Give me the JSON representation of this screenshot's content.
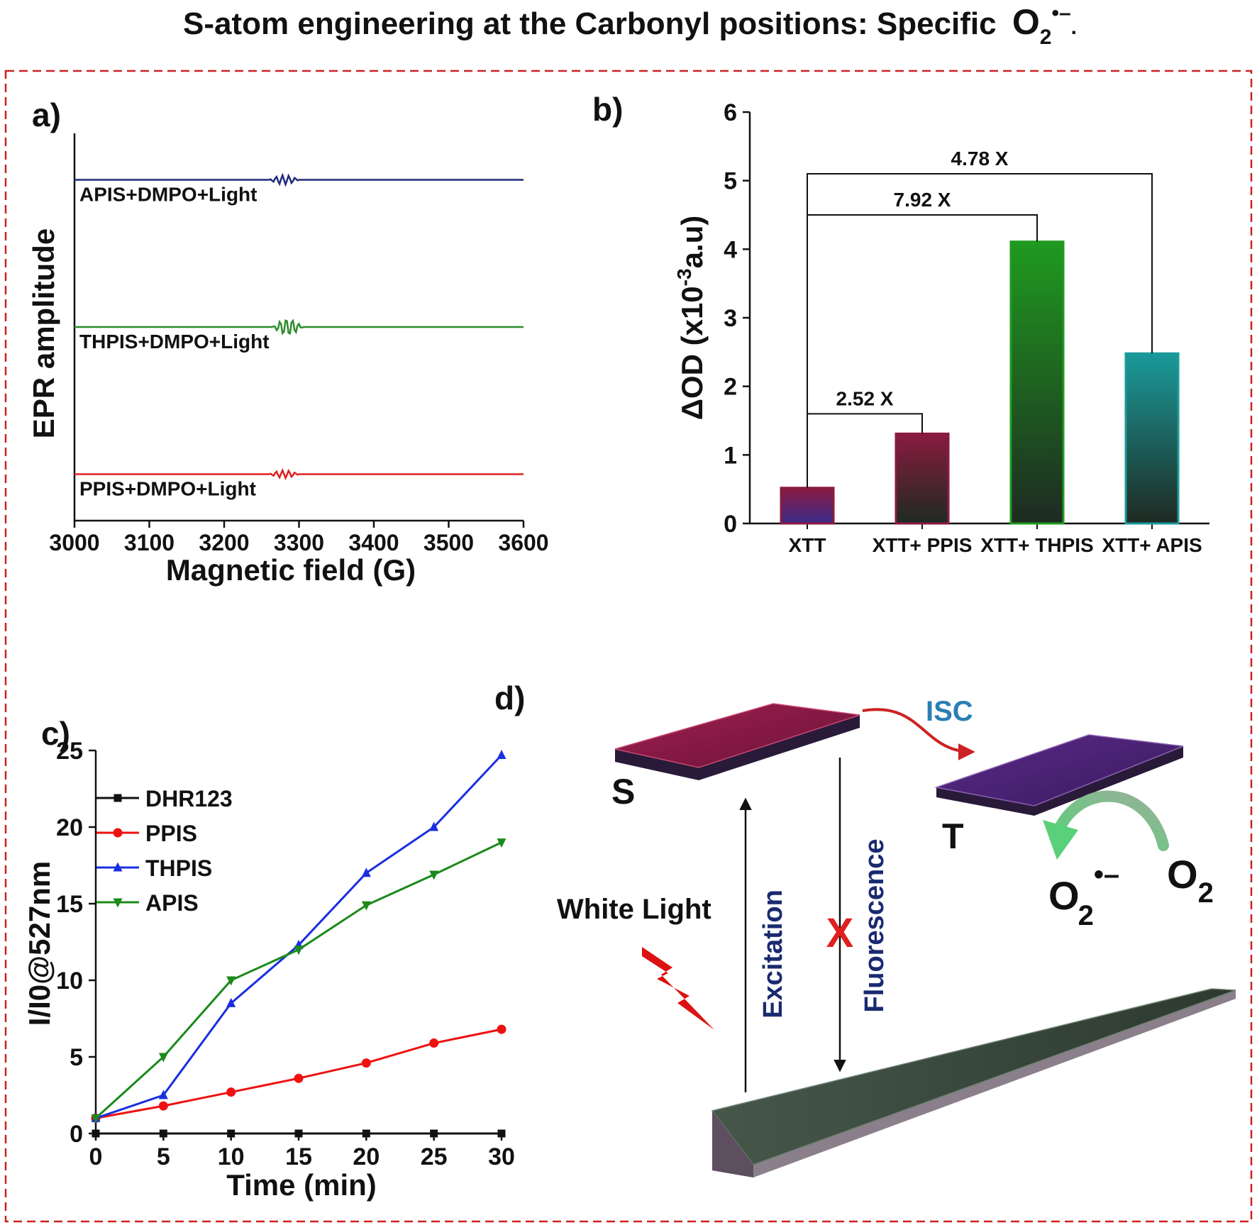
{
  "header": {
    "title": "S-atom engineering at the Carbonyl  positions: Specific",
    "species": "O",
    "species_sub": "2",
    "species_sup": "•–",
    "species_end": "."
  },
  "panels": {
    "a": {
      "label": "a)"
    },
    "b": {
      "label": "b)"
    },
    "c": {
      "label": "c)"
    },
    "d": {
      "label": "d)"
    }
  },
  "scheme": {
    "singlet": "S",
    "triplet": "T",
    "isc": "ISC",
    "light": "White Light",
    "excitation": "Excitation",
    "fluorescence": "Fluorescence",
    "blocked_mark": "X",
    "o2": "O",
    "o2_sub": "2",
    "o2rad": "O",
    "o2rad_sub": "2",
    "o2rad_sup": "•–",
    "colors": {
      "singlet": "#8a1b40",
      "triplet": "#4a2470",
      "plate": "#3b4a3b",
      "isc_arrow": "#cc2222",
      "isc_text": "#2a7fb5",
      "label_text": "#1a2a70",
      "cross": "#e02020",
      "bolt": "#dd1111"
    }
  },
  "chart_data": [
    {
      "type": "line",
      "panel": "a",
      "title": "",
      "xlabel": "Magnetic field (G)",
      "ylabel": "EPR amplitude",
      "xlim": [
        3000,
        3600
      ],
      "xticks": [
        3000,
        3100,
        3200,
        3300,
        3400,
        3500,
        3600
      ],
      "yticks_shown": false,
      "series": [
        {
          "name": "APIS+DMPO+Light",
          "color": "#1f2a7a",
          "baseline": 0.88,
          "signal_center": 3280,
          "signal_amp": 0.012
        },
        {
          "name": "THPIS+DMPO+Light",
          "color": "#2e8b2e",
          "baseline": 0.5,
          "signal_center": 3285,
          "signal_amp": 0.022
        },
        {
          "name": "PPIS+DMPO+Light",
          "color": "#e02020",
          "baseline": 0.12,
          "signal_center": 3280,
          "signal_amp": 0.01
        }
      ]
    },
    {
      "type": "bar",
      "panel": "b",
      "title": "",
      "xlabel": "",
      "ylabel": "ΔOD (x10⁻³a.u)",
      "ylabel_main": "ΔOD (x10",
      "ylabel_sup": "-3",
      "ylabel_end": "a.u)",
      "ylim": [
        0,
        6
      ],
      "yticks": [
        0,
        1,
        2,
        3,
        4,
        5,
        6
      ],
      "categories": [
        "XTT",
        "XTT+ PPIS",
        "XTT+ THPIS",
        "XTT+ APIS"
      ],
      "values": [
        0.52,
        1.31,
        4.11,
        2.48
      ],
      "bar_colors": [
        "#8a1b40",
        "#8a1b40",
        "#1f9a1f",
        "#1a9a9a"
      ],
      "annotations": [
        {
          "text": "2.52 X",
          "from": 0,
          "to": 1,
          "level": 1.6
        },
        {
          "text": "7.92 X",
          "from": 0,
          "to": 2,
          "level": 4.5
        },
        {
          "text": "4.78 X",
          "from": 0,
          "to": 3,
          "level": 5.1
        }
      ]
    },
    {
      "type": "line",
      "panel": "c",
      "title": "",
      "xlabel": "Time (min)",
      "ylabel": "I/I0@527nm",
      "xlim": [
        0,
        30
      ],
      "ylim": [
        0,
        25
      ],
      "xticks": [
        0,
        5,
        10,
        15,
        20,
        25,
        30
      ],
      "yticks": [
        0,
        5,
        10,
        15,
        20,
        25
      ],
      "legend_position": "top-left",
      "x": [
        0,
        5,
        10,
        15,
        20,
        25,
        30
      ],
      "series": [
        {
          "name": "DHR123",
          "color": "#111111",
          "marker": "square",
          "values": [
            0,
            0,
            0,
            0,
            0,
            0,
            0
          ]
        },
        {
          "name": "PPIS",
          "color": "#ee1111",
          "marker": "circle",
          "values": [
            1.0,
            1.8,
            2.7,
            3.6,
            4.6,
            5.9,
            6.8
          ]
        },
        {
          "name": "THPIS",
          "color": "#1a2ee0",
          "marker": "triangle-up",
          "values": [
            1.0,
            2.5,
            8.5,
            12.3,
            17.0,
            20.0,
            24.7
          ]
        },
        {
          "name": "APIS",
          "color": "#1a8a1a",
          "marker": "triangle-down",
          "values": [
            1.0,
            5.0,
            10.0,
            12.0,
            14.9,
            16.9,
            19.0
          ]
        }
      ]
    }
  ]
}
